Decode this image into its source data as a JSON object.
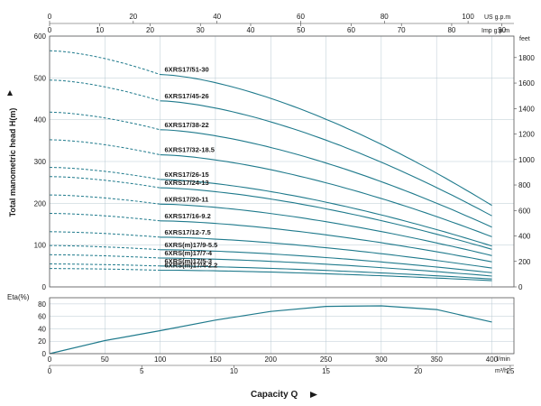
{
  "chart_data": [
    {
      "type": "line",
      "title": "",
      "ylabel": "Total manometric head H(m)",
      "xlabel": "Capacity Q",
      "y_right_unit": "feet",
      "top_axis_units": [
        "US g.p.m",
        "Imp g.p.m"
      ],
      "bottom_axis_units": [
        "l/min",
        "m³/h"
      ],
      "xlim": [
        0,
        420
      ],
      "ylim": [
        0,
        600
      ],
      "grid": true,
      "colors": {
        "curve": "#1f7a8c",
        "grid": "#b8c8d2"
      },
      "y_ticks": [
        0,
        100,
        200,
        300,
        400,
        500,
        600
      ],
      "y_right_ticks": [
        0,
        200,
        400,
        600,
        800,
        1000,
        1200,
        1400,
        1600,
        1800
      ],
      "top_us_ticks": [
        0,
        20,
        40,
        60,
        80,
        100
      ],
      "top_imp_ticks": [
        0,
        10,
        20,
        30,
        40,
        50,
        60,
        70,
        80,
        90
      ],
      "lmin_ticks": [
        0,
        50,
        100,
        150,
        200,
        250,
        300,
        350,
        400
      ],
      "m3h_ticks": [
        0,
        5,
        10,
        15,
        20,
        25
      ],
      "series": [
        {
          "name": "6XRS17/51-30",
          "shutoff": 565,
          "knee": 508,
          "end": 195
        },
        {
          "name": "6XRS17/45-26",
          "shutoff": 495,
          "knee": 445,
          "end": 170
        },
        {
          "name": "6XRS17/38-22",
          "shutoff": 418,
          "knee": 376,
          "end": 143
        },
        {
          "name": "6XRS17/32-18.5",
          "shutoff": 352,
          "knee": 316,
          "end": 120
        },
        {
          "name": "6XRS17/26-15",
          "shutoff": 286,
          "knee": 257,
          "end": 98
        },
        {
          "name": "6XRS17/24-13",
          "shutoff": 264,
          "knee": 237,
          "end": 90
        },
        {
          "name": "6XRS17/20-11",
          "shutoff": 220,
          "knee": 198,
          "end": 75
        },
        {
          "name": "6XRS17/16-9.2",
          "shutoff": 176,
          "knee": 158,
          "end": 60
        },
        {
          "name": "6XRS17/12-7.5",
          "shutoff": 132,
          "knee": 119,
          "end": 45
        },
        {
          "name": "6XRS(m)17/9-5.5",
          "shutoff": 99,
          "knee": 89,
          "end": 34
        },
        {
          "name": "6XRS(m)17/7-4",
          "shutoff": 77,
          "knee": 69,
          "end": 26
        },
        {
          "name": "6XRS(m)17/5-3",
          "shutoff": 55,
          "knee": 50,
          "end": 19
        },
        {
          "name": "6XRS(m)17/4-2.2",
          "shutoff": 44,
          "knee": 40,
          "end": 15
        }
      ],
      "knee_x": 100,
      "end_x": 400
    },
    {
      "type": "line",
      "ylabel": "Eta(%)",
      "ylim": [
        0,
        90
      ],
      "y_ticks": [
        0,
        20,
        40,
        60,
        80
      ],
      "series": [
        {
          "name": "",
          "x": [
            0,
            50,
            100,
            150,
            200,
            250,
            300,
            350,
            400
          ],
          "y": [
            0,
            21,
            37,
            54,
            68,
            76,
            77,
            71,
            51
          ]
        }
      ]
    }
  ]
}
